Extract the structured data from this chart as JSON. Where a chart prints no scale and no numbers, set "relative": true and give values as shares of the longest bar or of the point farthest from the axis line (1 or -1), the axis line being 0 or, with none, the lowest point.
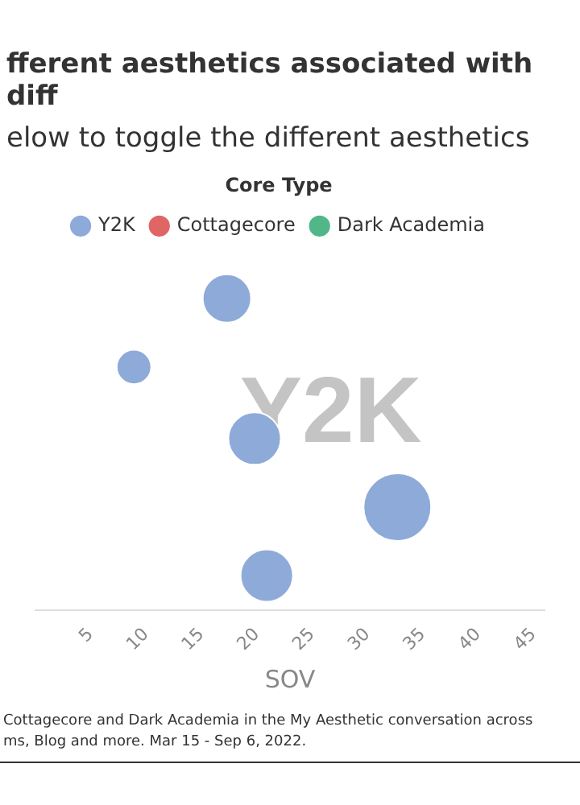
{
  "chart_data": {
    "type": "bubble",
    "title": "fferent aesthetics associated with diff",
    "subtitle": "elow to toggle the different aesthetics",
    "xlabel": "SOV",
    "legend_title": "Core Type",
    "legend": "top",
    "relative": true,
    "tick_labels": "x",
    "grid": false,
    "xlim": [
      0,
      46
    ],
    "xticks": [
      5,
      10,
      15,
      20,
      25,
      30,
      35,
      40,
      45
    ],
    "series": [
      {
        "name": "Y2K",
        "color": "#8eaad8",
        "x": [
          17.3,
          8.9,
          19.8,
          32.7,
          20.9
        ],
        "values": [
          1,
          0.78,
          0.55,
          0.33,
          0.11
        ],
        "sizes": [
          0.51,
          0.26,
          0.6,
          1,
          0.6
        ]
      },
      {
        "name": "Cottagecore",
        "color": "#e06666"
      },
      {
        "name": "Dark Academia",
        "color": "#52b788"
      }
    ],
    "annotations": [
      "Y2K",
      "Cottagecore and Dark Academia in the My Aesthetic conversation across",
      "ms, Blog and more. Mar 15 - Sep 6, 2022."
    ]
  }
}
